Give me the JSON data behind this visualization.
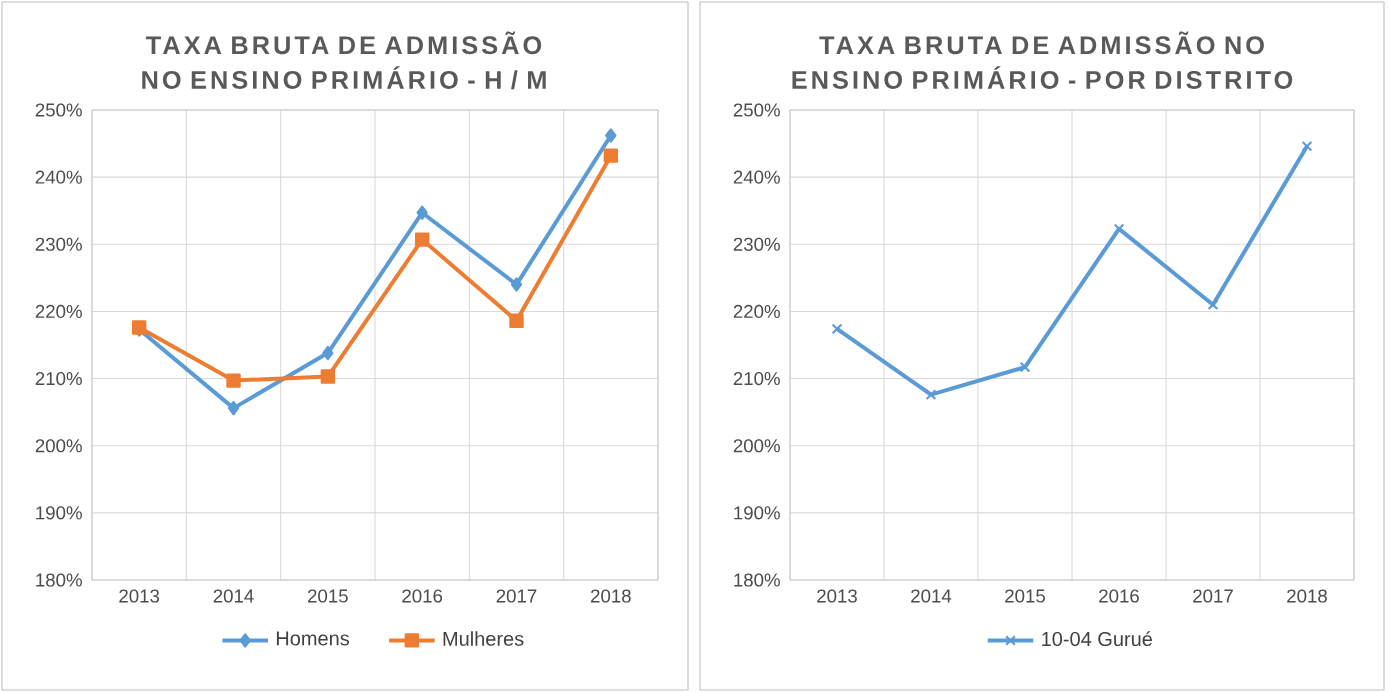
{
  "chart_data": [
    {
      "type": "line",
      "title": "TAXA BRUTA DE ADMISSÃO NO ENSINO PRIMÁRIO - H / M",
      "categories": [
        "2013",
        "2014",
        "2015",
        "2016",
        "2017",
        "2018"
      ],
      "series": [
        {
          "name": "Homens",
          "color": "#5b9bd5",
          "marker": "diamond",
          "values": [
            217.3,
            205.6,
            213.8,
            234.7,
            224.0,
            246.2
          ]
        },
        {
          "name": "Mulheres",
          "color": "#ed7d31",
          "marker": "square",
          "values": [
            217.6,
            209.7,
            210.3,
            230.7,
            218.6,
            243.2
          ]
        }
      ],
      "ylim": [
        180,
        250
      ],
      "yticks": [
        {
          "value": 180,
          "label": "180%"
        },
        {
          "value": 190,
          "label": "190%"
        },
        {
          "value": 200,
          "label": "200%"
        },
        {
          "value": 210,
          "label": "210%"
        },
        {
          "value": 220,
          "label": "220%"
        },
        {
          "value": 230,
          "label": "230%"
        },
        {
          "value": 240,
          "label": "240%"
        },
        {
          "value": 250,
          "label": "250%"
        }
      ],
      "grid": true,
      "legend": "bottom"
    },
    {
      "type": "line",
      "title": "TAXA BRUTA DE ADMISSÃO NO ENSINO PRIMÁRIO - POR DISTRITO",
      "categories": [
        "2013",
        "2014",
        "2015",
        "2016",
        "2017",
        "2018"
      ],
      "series": [
        {
          "name": "10-04 Gurué",
          "color": "#5b9bd5",
          "marker": "cross",
          "values": [
            217.4,
            207.6,
            211.7,
            232.3,
            221.0,
            244.6
          ]
        }
      ],
      "ylim": [
        180,
        250
      ],
      "yticks": [
        {
          "value": 180,
          "label": "180%"
        },
        {
          "value": 190,
          "label": "190%"
        },
        {
          "value": 200,
          "label": "200%"
        },
        {
          "value": 210,
          "label": "210%"
        },
        {
          "value": 220,
          "label": "220%"
        },
        {
          "value": 230,
          "label": "230%"
        },
        {
          "value": 240,
          "label": "240%"
        },
        {
          "value": 250,
          "label": "250%"
        }
      ],
      "grid": true,
      "legend": "bottom"
    }
  ]
}
